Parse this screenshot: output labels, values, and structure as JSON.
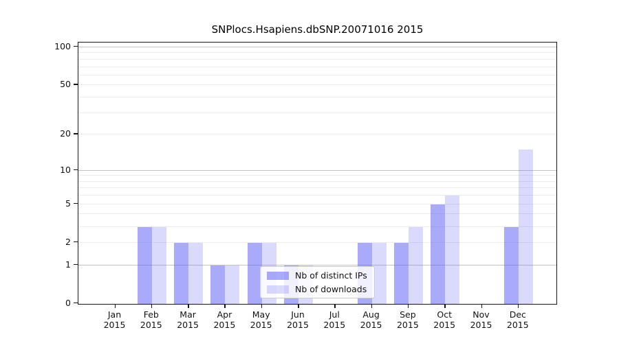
{
  "chart_data": {
    "type": "bar",
    "title": "SNPlocs.Hsapiens.dbSNP.20071016 2015",
    "x": {
      "months": [
        "Jan",
        "Feb",
        "Mar",
        "Apr",
        "May",
        "Jun",
        "Jul",
        "Aug",
        "Sep",
        "Oct",
        "Nov",
        "Dec"
      ],
      "year": "2015"
    },
    "y_axis": {
      "scale": "log1p",
      "ticks": [
        0,
        1,
        2,
        5,
        10,
        20,
        50,
        100
      ],
      "top_value": 113
    },
    "series": [
      {
        "name": "Nb of distinct IPs",
        "key": "distinct-ips",
        "color": "rgba(85,85,245,0.50)",
        "values": [
          0,
          3,
          2,
          1,
          2,
          1,
          0,
          2,
          2,
          5,
          0,
          3
        ]
      },
      {
        "name": "Nb of downloads",
        "key": "downloads",
        "color": "rgba(85,85,245,0.22)",
        "values": [
          0,
          3,
          2,
          1,
          2,
          1,
          0,
          2,
          3,
          6,
          0,
          15
        ]
      }
    ],
    "legend": {
      "position": "lower center",
      "entries": [
        "Nb of distinct IPs",
        "Nb of downloads"
      ]
    },
    "grid": {
      "major_color": "#c3c3c3",
      "minor_color": "#ebebeb",
      "major_values": [
        1,
        10,
        100
      ],
      "minor_values": [
        2,
        3,
        4,
        5,
        6,
        7,
        8,
        9,
        20,
        30,
        40,
        50,
        60,
        70,
        80,
        90
      ]
    },
    "colors": {
      "axis": "#151515",
      "background": "#ffffff"
    }
  }
}
